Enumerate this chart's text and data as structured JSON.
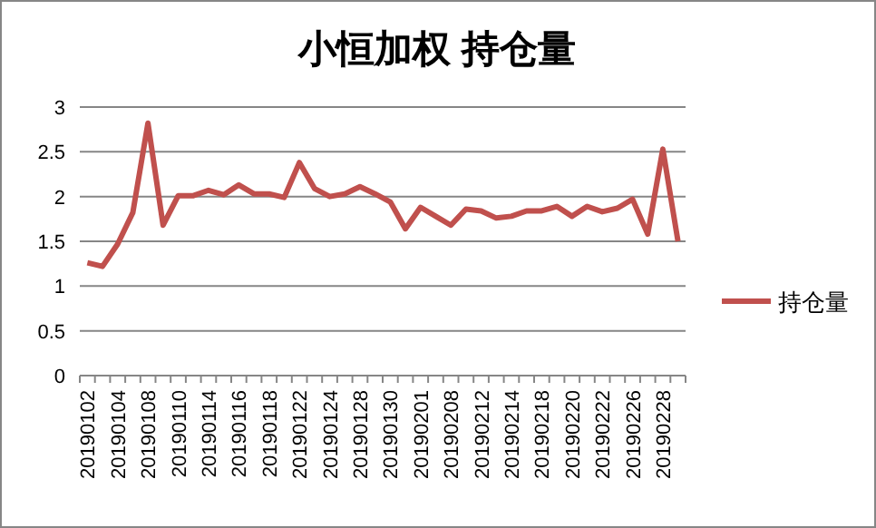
{
  "chart_data": {
    "type": "line",
    "title": "小恒加权 持仓量",
    "categories": [
      "20190102",
      null,
      "20190104",
      null,
      "20190108",
      null,
      "20190110",
      null,
      "20190114",
      null,
      "20190116",
      null,
      "20190118",
      null,
      "20190122",
      null,
      "20190124",
      null,
      "20190128",
      null,
      "20190130",
      null,
      "20190201",
      null,
      "20190208",
      null,
      "20190212",
      null,
      "20190214",
      null,
      "20190218",
      null,
      "20190220",
      null,
      "20190222",
      null,
      "20190226",
      null,
      "20190228",
      null
    ],
    "series": [
      {
        "name": "持仓量",
        "color": "#c0504d",
        "values": [
          1.26,
          1.22,
          1.47,
          1.82,
          2.82,
          1.68,
          2.01,
          2.01,
          2.07,
          2.02,
          2.13,
          2.03,
          2.03,
          1.99,
          2.38,
          2.09,
          2.0,
          2.03,
          2.11,
          2.03,
          1.94,
          1.64,
          1.88,
          1.78,
          1.68,
          1.86,
          1.84,
          1.76,
          1.78,
          1.84,
          1.84,
          1.89,
          1.78,
          1.89,
          1.83,
          1.87,
          1.97,
          1.58,
          2.53,
          1.5
        ]
      }
    ],
    "ylim": [
      0,
      3
    ],
    "yticks": [
      0,
      0.5,
      1,
      1.5,
      2,
      2.5,
      3
    ],
    "grid": "y",
    "legend": "right",
    "marker": "none",
    "line_style": "solid"
  }
}
